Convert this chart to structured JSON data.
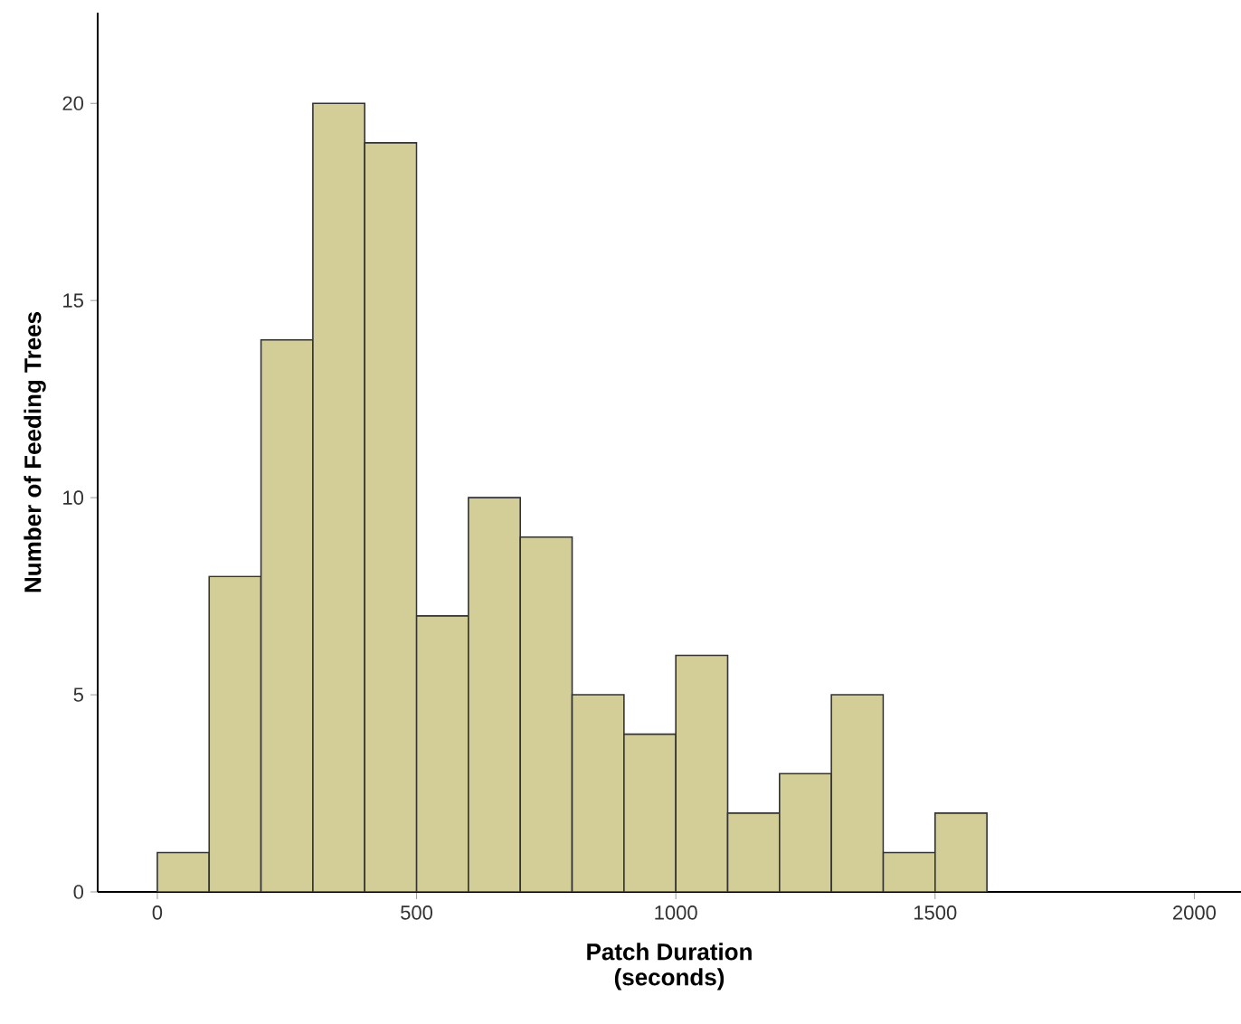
{
  "chart_data": {
    "type": "histogram",
    "xlabel": "Patch Duration\n(seconds)",
    "ylabel": "Number of Feeding Trees",
    "bins": [
      0,
      100,
      200,
      300,
      400,
      500,
      600,
      700,
      800,
      900,
      1000,
      1100,
      1200,
      1300,
      1400,
      1500,
      1600
    ],
    "values": [
      1,
      8,
      14,
      20,
      19,
      7,
      10,
      9,
      5,
      4,
      6,
      2,
      3,
      5,
      1,
      2
    ],
    "color": "#d3ce97",
    "xlim": [
      -115,
      2090
    ],
    "ylim": [
      0,
      22.3
    ],
    "xticks": [
      0,
      500,
      1000,
      1500,
      2000
    ],
    "yticks": [
      0,
      5,
      10,
      15,
      20
    ]
  }
}
